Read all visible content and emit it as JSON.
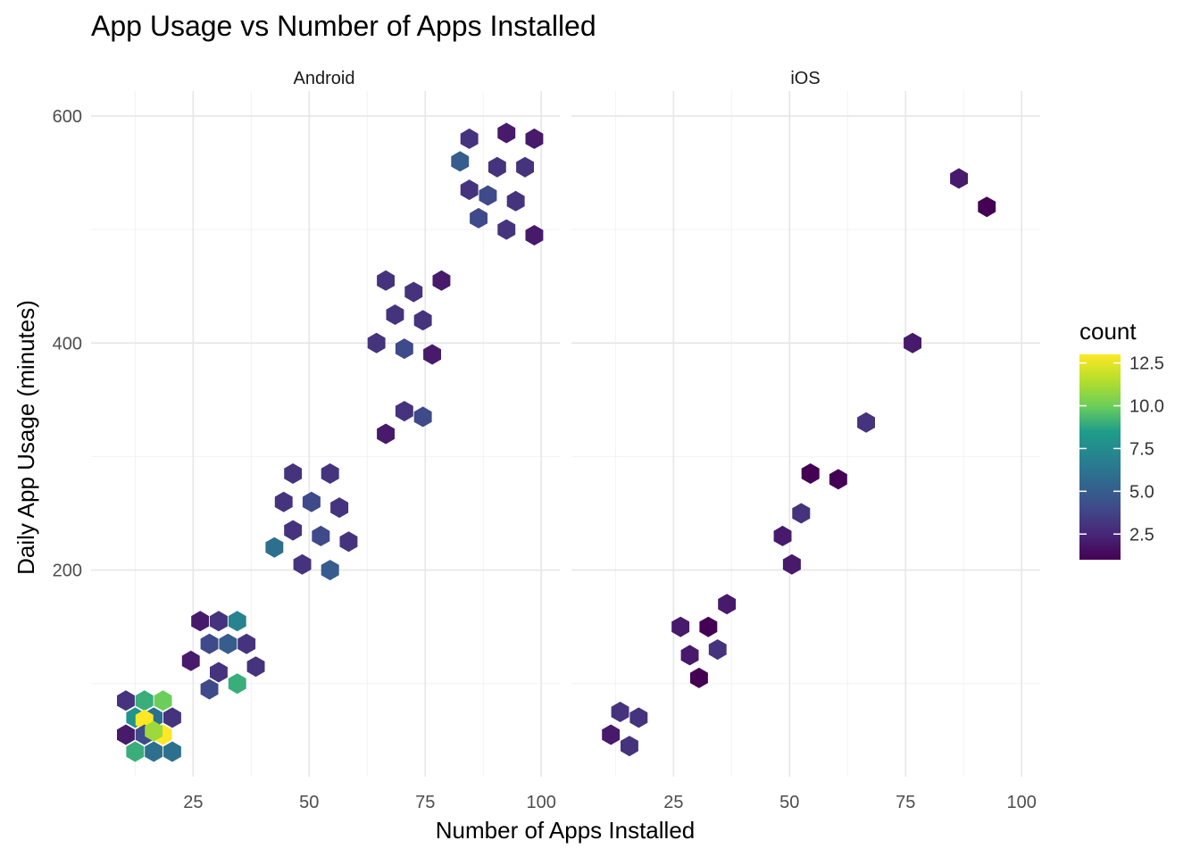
{
  "chart_data": {
    "type": "hexbin",
    "title": "App Usage vs Number of Apps Installed",
    "xlabel": "Number of Apps Installed",
    "ylabel": "Daily App Usage (minutes)",
    "xlim": [
      3,
      104
    ],
    "ylim": [
      18,
      622
    ],
    "x_ticks": [
      25,
      50,
      75,
      100
    ],
    "y_ticks": [
      200,
      400,
      600
    ],
    "legend": {
      "title": "count",
      "position": "right",
      "ticks": [
        2.5,
        5.0,
        7.5,
        10.0,
        12.5
      ],
      "tick_labels": [
        "2.5",
        "5.0",
        "7.5",
        "10.0",
        "12.5"
      ],
      "min": 1,
      "max": 13,
      "colormap": [
        "#440154",
        "#482777",
        "#3f4a8a",
        "#31678e",
        "#26838f",
        "#1f9d8a",
        "#6cce5a",
        "#b6de2b",
        "#fee825"
      ]
    },
    "panels": [
      {
        "name": "Android",
        "hexes": [
          {
            "x": 10.5,
            "y": 85,
            "count": 3
          },
          {
            "x": 14.5,
            "y": 85,
            "count": 9
          },
          {
            "x": 18.5,
            "y": 85,
            "count": 10
          },
          {
            "x": 12.5,
            "y": 70,
            "count": 8
          },
          {
            "x": 16.5,
            "y": 70,
            "count": 6
          },
          {
            "x": 20.5,
            "y": 70,
            "count": 3
          },
          {
            "x": 14.5,
            "y": 68,
            "count": 13
          },
          {
            "x": 10.5,
            "y": 55,
            "count": 2
          },
          {
            "x": 14.5,
            "y": 55,
            "count": 4
          },
          {
            "x": 18.5,
            "y": 55,
            "count": 13
          },
          {
            "x": 16.5,
            "y": 58,
            "count": 11
          },
          {
            "x": 12.5,
            "y": 40,
            "count": 9
          },
          {
            "x": 16.5,
            "y": 40,
            "count": 6
          },
          {
            "x": 20.5,
            "y": 40,
            "count": 6
          },
          {
            "x": 26.5,
            "y": 155,
            "count": 2
          },
          {
            "x": 30.5,
            "y": 155,
            "count": 3
          },
          {
            "x": 34.5,
            "y": 155,
            "count": 7
          },
          {
            "x": 28.5,
            "y": 135,
            "count": 4
          },
          {
            "x": 32.5,
            "y": 135,
            "count": 5
          },
          {
            "x": 36.5,
            "y": 135,
            "count": 3
          },
          {
            "x": 24.5,
            "y": 120,
            "count": 2
          },
          {
            "x": 30.5,
            "y": 110,
            "count": 3
          },
          {
            "x": 34.5,
            "y": 100,
            "count": 9
          },
          {
            "x": 28.5,
            "y": 95,
            "count": 4
          },
          {
            "x": 38.5,
            "y": 115,
            "count": 3
          },
          {
            "x": 46.5,
            "y": 285,
            "count": 3
          },
          {
            "x": 54.5,
            "y": 285,
            "count": 3
          },
          {
            "x": 44.5,
            "y": 260,
            "count": 3
          },
          {
            "x": 50.5,
            "y": 260,
            "count": 4
          },
          {
            "x": 56.5,
            "y": 255,
            "count": 3
          },
          {
            "x": 46.5,
            "y": 235,
            "count": 3
          },
          {
            "x": 52.5,
            "y": 230,
            "count": 4
          },
          {
            "x": 58.5,
            "y": 225,
            "count": 3
          },
          {
            "x": 42.5,
            "y": 220,
            "count": 6
          },
          {
            "x": 48.5,
            "y": 205,
            "count": 3
          },
          {
            "x": 54.5,
            "y": 200,
            "count": 5
          },
          {
            "x": 66.5,
            "y": 455,
            "count": 3
          },
          {
            "x": 72.5,
            "y": 445,
            "count": 3
          },
          {
            "x": 78.5,
            "y": 455,
            "count": 2
          },
          {
            "x": 68.5,
            "y": 425,
            "count": 3
          },
          {
            "x": 74.5,
            "y": 420,
            "count": 3
          },
          {
            "x": 70.5,
            "y": 395,
            "count": 4
          },
          {
            "x": 64.5,
            "y": 400,
            "count": 3
          },
          {
            "x": 76.5,
            "y": 390,
            "count": 2
          },
          {
            "x": 70.5,
            "y": 340,
            "count": 3
          },
          {
            "x": 74.5,
            "y": 335,
            "count": 4
          },
          {
            "x": 66.5,
            "y": 320,
            "count": 2
          },
          {
            "x": 84.5,
            "y": 580,
            "count": 3
          },
          {
            "x": 92.5,
            "y": 585,
            "count": 2
          },
          {
            "x": 98.5,
            "y": 580,
            "count": 2
          },
          {
            "x": 82.5,
            "y": 560,
            "count": 5
          },
          {
            "x": 90.5,
            "y": 555,
            "count": 3
          },
          {
            "x": 96.5,
            "y": 555,
            "count": 3
          },
          {
            "x": 84.5,
            "y": 535,
            "count": 3
          },
          {
            "x": 88.5,
            "y": 530,
            "count": 4
          },
          {
            "x": 94.5,
            "y": 525,
            "count": 3
          },
          {
            "x": 86.5,
            "y": 510,
            "count": 4
          },
          {
            "x": 92.5,
            "y": 500,
            "count": 3
          },
          {
            "x": 98.5,
            "y": 495,
            "count": 2
          }
        ]
      },
      {
        "name": "iOS",
        "hexes": [
          {
            "x": 13.5,
            "y": 75,
            "count": 3
          },
          {
            "x": 17.5,
            "y": 70,
            "count": 3
          },
          {
            "x": 11.5,
            "y": 55,
            "count": 2
          },
          {
            "x": 15.5,
            "y": 45,
            "count": 3
          },
          {
            "x": 26.5,
            "y": 150,
            "count": 2
          },
          {
            "x": 32.5,
            "y": 150,
            "count": 1
          },
          {
            "x": 36.5,
            "y": 170,
            "count": 2
          },
          {
            "x": 28.5,
            "y": 125,
            "count": 2
          },
          {
            "x": 34.5,
            "y": 130,
            "count": 3
          },
          {
            "x": 30.5,
            "y": 105,
            "count": 1
          },
          {
            "x": 48.5,
            "y": 230,
            "count": 2
          },
          {
            "x": 52.5,
            "y": 250,
            "count": 3
          },
          {
            "x": 50.5,
            "y": 205,
            "count": 2
          },
          {
            "x": 54.5,
            "y": 285,
            "count": 1
          },
          {
            "x": 60.5,
            "y": 280,
            "count": 1
          },
          {
            "x": 66.5,
            "y": 330,
            "count": 3
          },
          {
            "x": 76.5,
            "y": 400,
            "count": 2
          },
          {
            "x": 86.5,
            "y": 545,
            "count": 2
          },
          {
            "x": 92.5,
            "y": 520,
            "count": 1
          }
        ]
      }
    ]
  }
}
